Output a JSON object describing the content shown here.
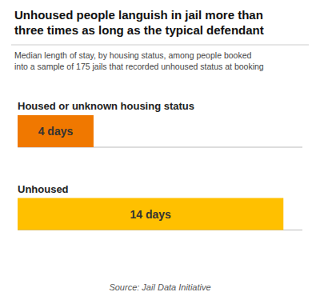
{
  "chart_data": {
    "type": "bar",
    "orientation": "horizontal",
    "title": "Unhoused people languish in jail more than\nthree times as long as the typical defendant",
    "subtitle": "Median length of stay, by housing status, among people booked\ninto a sample of 175 jails that recorded unhoused status at booking",
    "source": "Source: Jail Data Initiative",
    "categories": [
      "Housed or unknown housing status",
      "Unhoused"
    ],
    "values": [
      4,
      14
    ],
    "value_labels": [
      "4 days",
      "14 days"
    ],
    "colors": [
      "#F07800",
      "#FFC000"
    ],
    "xlim": [
      0,
      15
    ],
    "data_labels": true,
    "tick_labels": false,
    "grid": false
  }
}
